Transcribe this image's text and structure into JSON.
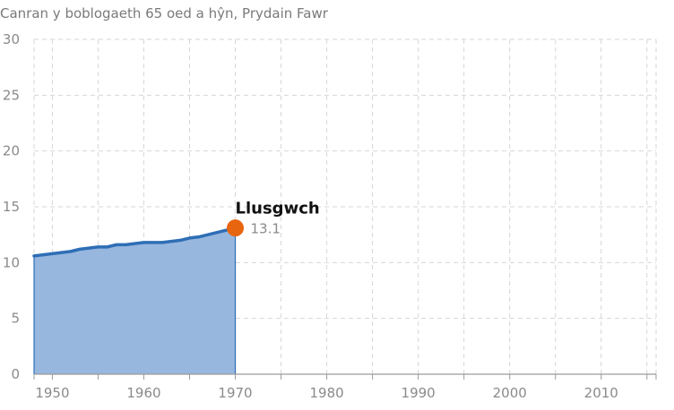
{
  "chart_data": {
    "type": "area",
    "title": "Canran y boblogaeth 65 oed a hŷn, Prydain Fawr",
    "xlabel": "",
    "ylabel": "",
    "xlim": [
      1948,
      2016
    ],
    "ylim": [
      0,
      30
    ],
    "x_ticks": [
      1950,
      1960,
      1970,
      1980,
      1990,
      2000,
      2010
    ],
    "y_ticks": [
      0,
      5,
      10,
      15,
      20,
      25,
      30
    ],
    "grid": true,
    "series": [
      {
        "x": [
          1948,
          1949,
          1950,
          1951,
          1952,
          1953,
          1954,
          1955,
          1956,
          1957,
          1958,
          1959,
          1960,
          1961,
          1962,
          1963,
          1964,
          1965,
          1966,
          1967,
          1968,
          1969,
          1970
        ],
        "y": [
          10.6,
          10.7,
          10.8,
          10.9,
          11.0,
          11.2,
          11.3,
          11.4,
          11.4,
          11.6,
          11.6,
          11.7,
          11.8,
          11.8,
          11.8,
          11.9,
          12.0,
          12.2,
          12.3,
          12.5,
          12.7,
          12.9,
          13.1
        ],
        "line_color": "#2e6eb5",
        "fill_color": "#97b7df"
      }
    ],
    "annotation": {
      "x": 1970,
      "y": 13.1,
      "label": "Llusgwch",
      "value_text": "13.1",
      "marker_color": "#e8650f"
    }
  }
}
